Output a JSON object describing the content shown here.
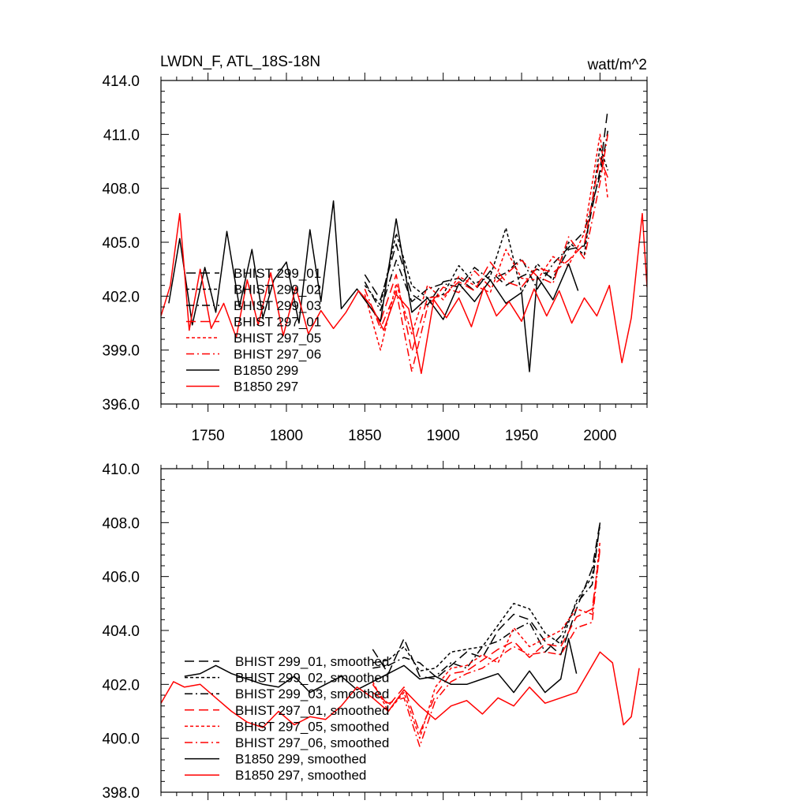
{
  "chart_data": [
    {
      "type": "line",
      "title": "LWDN_F, ATL_18S-18N",
      "units": "watt/m^2",
      "xlabel": "",
      "ylabel": "",
      "xlim": [
        1720,
        2030
      ],
      "ylim": [
        396.0,
        414.0
      ],
      "xticks": [
        1750,
        1800,
        1850,
        1900,
        1950,
        2000
      ],
      "xtick_labels": [
        "1750",
        "1800",
        "1850",
        "1900",
        "1950",
        "2000"
      ],
      "yticks": [
        396.0,
        399.0,
        402.0,
        405.0,
        408.0,
        411.0,
        414.0
      ],
      "ytick_labels": [
        "396.0",
        "399.0",
        "402.0",
        "405.0",
        "408.0",
        "411.0",
        "414.0"
      ],
      "grid": false,
      "legend_position": "lower-left",
      "series": [
        {
          "name": "BHIST 299_01",
          "color": "#000000",
          "dash": "long-dash",
          "x": [
            1850,
            1860,
            1870,
            1880,
            1890,
            1900,
            1910,
            1920,
            1930,
            1940,
            1950,
            1960,
            1970,
            1980,
            1990,
            2000,
            2005
          ],
          "values": [
            403.2,
            401.8,
            404.9,
            402.1,
            401.5,
            402.8,
            403.0,
            402.3,
            403.4,
            402.6,
            403.1,
            403.5,
            403.0,
            404.6,
            404.8,
            409.0,
            412.4
          ]
        },
        {
          "name": "BHIST 299_02",
          "color": "#000000",
          "dash": "short-dash",
          "x": [
            1850,
            1860,
            1870,
            1880,
            1890,
            1900,
            1910,
            1920,
            1930,
            1940,
            1950,
            1960,
            1970,
            1980,
            1990,
            2000,
            2005
          ],
          "values": [
            402.6,
            401.5,
            405.5,
            402.6,
            401.9,
            402.1,
            403.7,
            402.7,
            403.1,
            405.8,
            402.2,
            403.8,
            402.9,
            405.0,
            404.3,
            410.3,
            409.0
          ]
        },
        {
          "name": "BHIST 299_03",
          "color": "#000000",
          "dash": "dash-dot",
          "x": [
            1850,
            1860,
            1870,
            1880,
            1890,
            1900,
            1910,
            1920,
            1930,
            1940,
            1950,
            1960,
            1970,
            1980,
            1990,
            2000,
            2005
          ],
          "values": [
            402.8,
            401.2,
            404.0,
            401.7,
            402.4,
            402.7,
            402.5,
            403.6,
            402.9,
            403.3,
            404.1,
            402.4,
            403.8,
            404.7,
            405.6,
            408.7,
            411.2
          ]
        },
        {
          "name": "BHIST 297_01",
          "color": "#ff0000",
          "dash": "long-dash",
          "x": [
            1850,
            1860,
            1870,
            1880,
            1890,
            1900,
            1910,
            1920,
            1930,
            1940,
            1950,
            1960,
            1970,
            1980,
            1990,
            2000,
            2005
          ],
          "values": [
            401.8,
            400.6,
            403.2,
            398.9,
            401.9,
            402.0,
            402.8,
            402.3,
            403.9,
            402.8,
            402.5,
            403.6,
            403.3,
            404.0,
            404.9,
            409.7,
            408.6
          ]
        },
        {
          "name": "BHIST 297_05",
          "color": "#ff0000",
          "dash": "short-dash",
          "x": [
            1850,
            1860,
            1870,
            1880,
            1890,
            1900,
            1910,
            1920,
            1930,
            1940,
            1950,
            1960,
            1970,
            1980,
            1990,
            2000,
            2005
          ],
          "values": [
            402.1,
            399.0,
            402.7,
            399.9,
            402.6,
            401.8,
            403.1,
            402.6,
            402.2,
            404.6,
            403.0,
            402.9,
            404.2,
            403.7,
            405.5,
            411.0,
            407.4
          ]
        },
        {
          "name": "BHIST 297_06",
          "color": "#ff0000",
          "dash": "dash-dot",
          "x": [
            1850,
            1860,
            1870,
            1880,
            1890,
            1900,
            1910,
            1920,
            1930,
            1940,
            1950,
            1960,
            1970,
            1980,
            1990,
            2000,
            2005
          ],
          "values": [
            402.4,
            400.2,
            402.3,
            397.8,
            401.4,
            402.5,
            402.2,
            403.4,
            402.5,
            403.2,
            404.0,
            403.1,
            402.7,
            405.3,
            404.1,
            408.3,
            411.0
          ]
        },
        {
          "name": "B1850 299",
          "color": "#000000",
          "dash": "solid",
          "x": [
            1725,
            1732,
            1740,
            1748,
            1755,
            1762,
            1770,
            1778,
            1785,
            1792,
            1800,
            1808,
            1815,
            1822,
            1830,
            1835,
            1845,
            1850,
            1860,
            1870,
            1880,
            1890,
            1900,
            1910,
            1920,
            1930,
            1940,
            1950,
            1955,
            1960,
            1970,
            1980,
            1986
          ],
          "values": [
            401.6,
            405.2,
            400.4,
            403.6,
            401.1,
            405.6,
            401.4,
            404.6,
            400.8,
            402.9,
            403.9,
            400.5,
            405.7,
            401.7,
            407.3,
            401.3,
            402.4,
            401.8,
            400.6,
            406.3,
            401.1,
            401.9,
            400.7,
            402.7,
            401.7,
            402.9,
            401.6,
            402.2,
            397.8,
            403.1,
            401.8,
            403.8,
            402.3
          ]
        },
        {
          "name": "B1850 297",
          "color": "#ff0000",
          "dash": "solid",
          "x": [
            1720,
            1726,
            1732,
            1738,
            1745,
            1752,
            1760,
            1768,
            1775,
            1782,
            1790,
            1798,
            1806,
            1814,
            1822,
            1830,
            1838,
            1846,
            1854,
            1862,
            1870,
            1878,
            1886,
            1894,
            1902,
            1910,
            1918,
            1926,
            1934,
            1942,
            1950,
            1958,
            1966,
            1974,
            1982,
            1990,
            1998,
            2006,
            2014,
            2020,
            2027,
            2030
          ],
          "values": [
            400.9,
            402.6,
            406.6,
            400.1,
            403.5,
            400.2,
            401.6,
            399.7,
            402.9,
            400.4,
            403.3,
            399.8,
            402.5,
            399.9,
            401.2,
            400.2,
            401.1,
            402.3,
            401.5,
            400.1,
            402.1,
            401.3,
            397.7,
            401.8,
            400.8,
            401.9,
            400.3,
            402.5,
            400.9,
            401.7,
            400.6,
            402.4,
            400.9,
            402.3,
            400.5,
            401.9,
            400.9,
            402.6,
            398.3,
            400.8,
            406.6,
            402.5
          ]
        }
      ]
    },
    {
      "type": "line",
      "title": "",
      "xlabel": "",
      "ylabel": "",
      "xlim": [
        1720,
        2030
      ],
      "ylim": [
        398.0,
        410.0
      ],
      "xticks": [
        1750,
        1800,
        1850,
        1900,
        1950,
        2000
      ],
      "yticks": [
        398.0,
        400.0,
        402.0,
        404.0,
        406.0,
        408.0,
        410.0
      ],
      "ytick_labels": [
        "398.0",
        "400.0",
        "402.0",
        "404.0",
        "406.0",
        "408.0",
        "410.0"
      ],
      "grid": false,
      "legend_position": "lower-left",
      "series": [
        {
          "name": "BHIST 299_01, smoothed",
          "color": "#000000",
          "dash": "long-dash",
          "x": [
            1855,
            1865,
            1875,
            1885,
            1895,
            1905,
            1915,
            1925,
            1935,
            1945,
            1955,
            1965,
            1975,
            1985,
            1995,
            2000
          ],
          "values": [
            403.3,
            402.4,
            403.7,
            402.3,
            402.2,
            402.7,
            403.2,
            403.0,
            404.0,
            404.6,
            404.4,
            403.6,
            403.1,
            404.8,
            406.3,
            408.0
          ]
        },
        {
          "name": "BHIST 299_02, smoothed",
          "color": "#000000",
          "dash": "short-dash",
          "x": [
            1855,
            1865,
            1875,
            1885,
            1895,
            1905,
            1915,
            1925,
            1935,
            1945,
            1955,
            1965,
            1975,
            1985,
            1995,
            2000
          ],
          "values": [
            402.8,
            402.9,
            403.4,
            402.5,
            402.6,
            403.2,
            403.3,
            403.4,
            404.2,
            405.0,
            404.8,
            403.9,
            403.5,
            405.1,
            406.0,
            407.9
          ]
        },
        {
          "name": "BHIST 299_03, smoothed",
          "color": "#000000",
          "dash": "dash-dot",
          "x": [
            1855,
            1865,
            1875,
            1885,
            1895,
            1905,
            1915,
            1925,
            1935,
            1945,
            1955,
            1965,
            1975,
            1985,
            1995,
            2000
          ],
          "values": [
            402.6,
            402.7,
            403.0,
            402.8,
            402.3,
            402.8,
            402.6,
            403.4,
            403.6,
            404.0,
            404.3,
            403.2,
            403.8,
            405.0,
            405.7,
            408.0
          ]
        },
        {
          "name": "BHIST 297_01, smoothed",
          "color": "#ff0000",
          "dash": "long-dash",
          "x": [
            1855,
            1865,
            1875,
            1885,
            1895,
            1905,
            1915,
            1925,
            1935,
            1945,
            1955,
            1965,
            1975,
            1985,
            1995,
            2000
          ],
          "values": [
            402.0,
            401.2,
            401.9,
            400.2,
            401.6,
            402.4,
            402.5,
            402.9,
            403.3,
            403.6,
            403.0,
            403.5,
            403.4,
            404.5,
            404.8,
            407.0
          ]
        },
        {
          "name": "BHIST 297_05, smoothed",
          "color": "#ff0000",
          "dash": "short-dash",
          "x": [
            1855,
            1865,
            1875,
            1885,
            1895,
            1905,
            1915,
            1925,
            1935,
            1945,
            1955,
            1965,
            1975,
            1985,
            1995,
            2000
          ],
          "values": [
            402.1,
            401.0,
            401.7,
            400.0,
            401.9,
            402.6,
            402.7,
            403.1,
            402.8,
            404.1,
            403.4,
            403.7,
            404.0,
            404.8,
            404.6,
            407.3
          ]
        },
        {
          "name": "BHIST 297_06, smoothed",
          "color": "#ff0000",
          "dash": "dash-dot",
          "x": [
            1855,
            1865,
            1875,
            1885,
            1895,
            1905,
            1915,
            1925,
            1935,
            1945,
            1955,
            1965,
            1975,
            1985,
            1995,
            2000
          ],
          "values": [
            401.7,
            401.3,
            401.5,
            399.7,
            401.4,
            402.1,
            402.4,
            402.6,
            403.0,
            403.4,
            403.1,
            403.2,
            403.1,
            404.1,
            404.3,
            407.1
          ]
        },
        {
          "name": "B1850 299, smoothed",
          "color": "#000000",
          "dash": "solid",
          "x": [
            1735,
            1745,
            1755,
            1765,
            1775,
            1785,
            1795,
            1805,
            1815,
            1825,
            1835,
            1845,
            1855,
            1865,
            1875,
            1885,
            1895,
            1905,
            1915,
            1925,
            1935,
            1945,
            1955,
            1965,
            1975,
            1980,
            1985
          ],
          "values": [
            402.3,
            402.4,
            402.7,
            402.4,
            402.2,
            402.0,
            401.9,
            402.3,
            401.7,
            402.0,
            402.3,
            401.8,
            402.1,
            402.4,
            402.7,
            402.2,
            402.3,
            402.0,
            402.0,
            402.2,
            402.4,
            401.7,
            402.5,
            401.7,
            402.2,
            403.7,
            402.4
          ]
        },
        {
          "name": "B1850 297, smoothed",
          "color": "#ff0000",
          "dash": "solid",
          "x": [
            1720,
            1728,
            1735,
            1745,
            1755,
            1765,
            1775,
            1785,
            1795,
            1805,
            1815,
            1825,
            1835,
            1845,
            1855,
            1865,
            1875,
            1885,
            1895,
            1905,
            1915,
            1925,
            1935,
            1945,
            1955,
            1965,
            1975,
            1985,
            1995,
            2000,
            2008,
            2015,
            2020,
            2025
          ],
          "values": [
            401.3,
            402.1,
            401.9,
            402.0,
            401.5,
            401.0,
            400.6,
            400.4,
            401.0,
            400.5,
            400.8,
            400.7,
            401.2,
            401.9,
            401.5,
            401.0,
            401.8,
            401.2,
            400.7,
            401.2,
            401.4,
            400.9,
            401.5,
            401.2,
            401.9,
            401.3,
            401.5,
            401.7,
            402.7,
            403.2,
            402.8,
            400.5,
            400.8,
            402.6
          ]
        }
      ]
    }
  ]
}
